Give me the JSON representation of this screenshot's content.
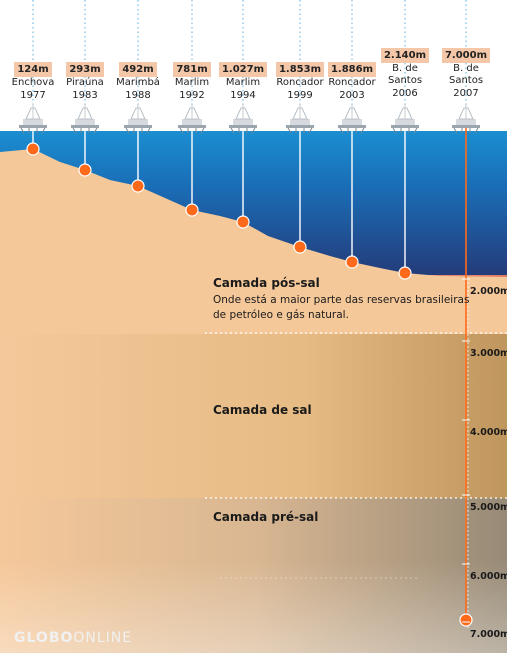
{
  "colors": {
    "sea_top": "#1b8ed1",
    "sea_bottom": "#243a78",
    "seabed": "#f5c89a",
    "platform_marker": "#ff6a1a",
    "depth_tag_bg": "#f4c7a8",
    "pos_sal_band": "#e9806b",
    "sal_band": "#c8a064",
    "pre_sal_band": "#9c8e7a",
    "guide_dots": "#7fc4e8"
  },
  "platforms": [
    {
      "depth": "124m",
      "name": "Enchova",
      "name2": "",
      "year": "1977",
      "depth_m": 124
    },
    {
      "depth": "293m",
      "name": "Piraúna",
      "name2": "",
      "year": "1983",
      "depth_m": 293
    },
    {
      "depth": "492m",
      "name": "Marimbá",
      "name2": "",
      "year": "1988",
      "depth_m": 492
    },
    {
      "depth": "781m",
      "name": "Marlim",
      "name2": "",
      "year": "1992",
      "depth_m": 781
    },
    {
      "depth": "1.027m",
      "name": "Marlim",
      "name2": "",
      "year": "1994",
      "depth_m": 1027
    },
    {
      "depth": "1.853m",
      "name": "Roncador",
      "name2": "",
      "year": "1999",
      "depth_m": 1853
    },
    {
      "depth": "1.886m",
      "name": "Roncador",
      "name2": "",
      "year": "2003",
      "depth_m": 1886
    },
    {
      "depth": "2.140m",
      "name": "B. de",
      "name2": "Santos",
      "year": "2006",
      "depth_m": 2140
    },
    {
      "depth": "7.000m",
      "name": "B. de",
      "name2": "Santos",
      "year": "2007",
      "depth_m": 7000
    }
  ],
  "layers": {
    "pos_sal": {
      "title": "Camada pós-sal",
      "desc": "Onde está a maior parte das reservas brasileiras de  petróleo e gás natural."
    },
    "sal": {
      "title": "Camada de sal"
    },
    "pre_sal": {
      "title": "Camada pré-sal"
    }
  },
  "scale": [
    "2.000m",
    "3.000m",
    "4.000m",
    "5.000m",
    "6.000m",
    "7.000m"
  ],
  "logo": {
    "bold": "GLOBO",
    "thin": "ONLINE"
  }
}
